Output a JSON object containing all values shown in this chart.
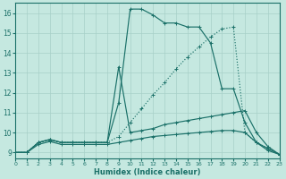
{
  "xlabel": "Humidex (Indice chaleur)",
  "background_color": "#c5e8e0",
  "grid_color": "#a8d0c8",
  "line_color": "#1a7068",
  "xlim": [
    0,
    23
  ],
  "ylim": [
    8.7,
    16.5
  ],
  "xticks": [
    0,
    1,
    2,
    3,
    4,
    5,
    6,
    7,
    8,
    9,
    10,
    11,
    12,
    13,
    14,
    15,
    16,
    17,
    18,
    19,
    20,
    21,
    22,
    23
  ],
  "yticks": [
    9,
    10,
    11,
    12,
    13,
    14,
    15,
    16
  ],
  "lines": [
    {
      "x": [
        0,
        1,
        2,
        3,
        4,
        5,
        6,
        7,
        8,
        9,
        10,
        11,
        12,
        13,
        14,
        15,
        16,
        17,
        18,
        19,
        20,
        21,
        22,
        23
      ],
      "y": [
        9.0,
        9.0,
        9.5,
        9.65,
        9.5,
        9.5,
        9.5,
        9.5,
        9.5,
        11.5,
        16.2,
        16.2,
        15.9,
        15.5,
        15.5,
        15.3,
        15.3,
        14.5,
        12.2,
        12.2,
        10.5,
        9.5,
        9.2,
        8.9
      ],
      "style": "-",
      "marker": "+"
    },
    {
      "x": [
        0,
        1,
        2,
        3,
        4,
        5,
        6,
        7,
        8,
        9,
        10,
        11,
        12,
        13,
        14,
        15,
        16,
        17,
        18,
        19,
        20,
        21,
        22,
        23
      ],
      "y": [
        9.0,
        9.0,
        9.5,
        9.65,
        9.5,
        9.5,
        9.5,
        9.5,
        9.5,
        13.3,
        10.0,
        10.1,
        10.2,
        10.4,
        10.5,
        10.6,
        10.7,
        10.8,
        10.9,
        11.0,
        11.1,
        10.0,
        9.3,
        8.9
      ],
      "style": "-",
      "marker": "+"
    },
    {
      "x": [
        0,
        1,
        2,
        3,
        4,
        5,
        6,
        7,
        8,
        9,
        10,
        11,
        12,
        13,
        14,
        15,
        16,
        17,
        18,
        19,
        20,
        21,
        22,
        23
      ],
      "y": [
        9.0,
        9.0,
        9.5,
        9.6,
        9.5,
        9.5,
        9.5,
        9.5,
        9.5,
        9.8,
        10.5,
        11.2,
        11.9,
        12.5,
        13.2,
        13.8,
        14.3,
        14.8,
        15.2,
        15.3,
        10.0,
        9.5,
        9.2,
        8.9
      ],
      "style": ":",
      "marker": "+"
    },
    {
      "x": [
        0,
        1,
        2,
        3,
        4,
        5,
        6,
        7,
        8,
        9,
        10,
        11,
        12,
        13,
        14,
        15,
        16,
        17,
        18,
        19,
        20,
        21,
        22,
        23
      ],
      "y": [
        9.0,
        9.0,
        9.4,
        9.55,
        9.4,
        9.4,
        9.4,
        9.4,
        9.4,
        9.5,
        9.6,
        9.7,
        9.8,
        9.85,
        9.9,
        9.95,
        10.0,
        10.05,
        10.1,
        10.1,
        10.0,
        9.5,
        9.1,
        8.9
      ],
      "style": "-",
      "marker": "+"
    }
  ]
}
